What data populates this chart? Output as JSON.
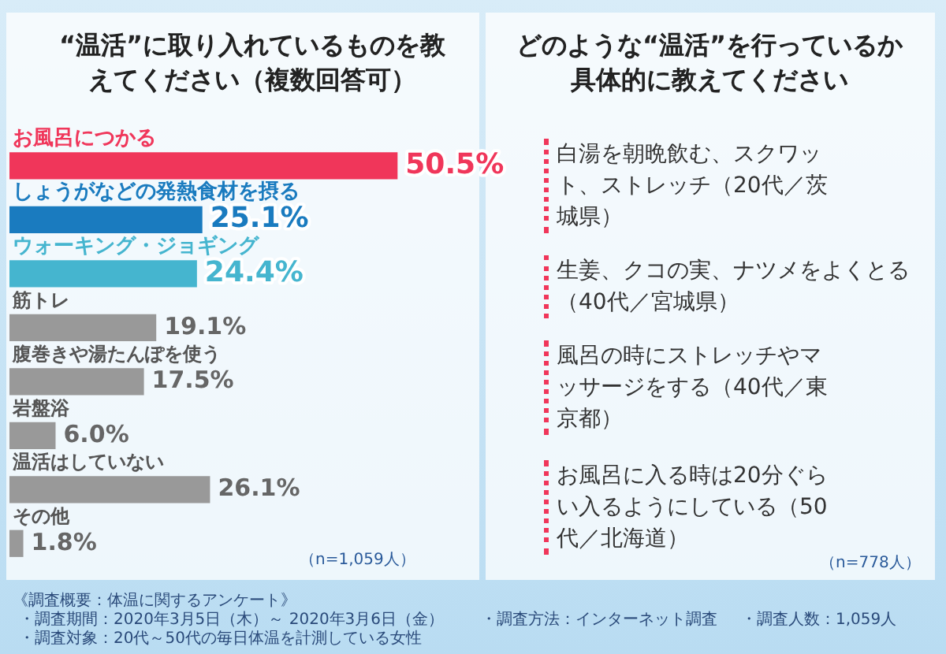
{
  "chart_data": {
    "type": "bar",
    "orientation": "horizontal",
    "title": "“温活”に取り入れているものを教えてください（複数回答可）",
    "categories": [
      "お風呂につかる",
      "しょうがなどの発熱食材を摂る",
      "ウォーキング・ジョギング",
      "筋トレ",
      "腹巻きや湯たんぽを使う",
      "岩盤浴",
      "温活はしていない",
      "その他"
    ],
    "values": [
      50.5,
      25.1,
      24.4,
      19.1,
      17.5,
      6.0,
      26.1,
      1.8
    ],
    "value_labels": [
      "50.5%",
      "25.1%",
      "24.4%",
      "19.1%",
      "17.5%",
      "6.0%",
      "26.1%",
      "1.8%"
    ],
    "colors": [
      "#f0365a",
      "#1a7bbf",
      "#45b5cf",
      "#999999",
      "#999999",
      "#999999",
      "#999999",
      "#999999"
    ],
    "legend": false,
    "data_labels": true,
    "annotations": [
      "どのような“温活”を行っているか具体的に教えてください",
      "白湯を朝晩飲む、スクワット、ストレッチ（20代／茨城県）",
      "生姜、クコの実、ナツメをよくとる（40代／宮城県）",
      "風呂の時にストレッチやマッサージをする（40代／東京都）",
      "お風呂に入る時は20分ぐらい入るようにしている（50代／北海道）",
      "（n=1,059人）",
      "（n=778人）",
      "《調査概要：体温に関するアンケート》",
      "・調査期間：2020年3月5日（木）～ 2020年3月6日（金）",
      "・調査方法：インターネット調査",
      "・調査人数：1,059人",
      "・調査対象：20代～50代の毎日体温を計測している女性"
    ]
  }
}
